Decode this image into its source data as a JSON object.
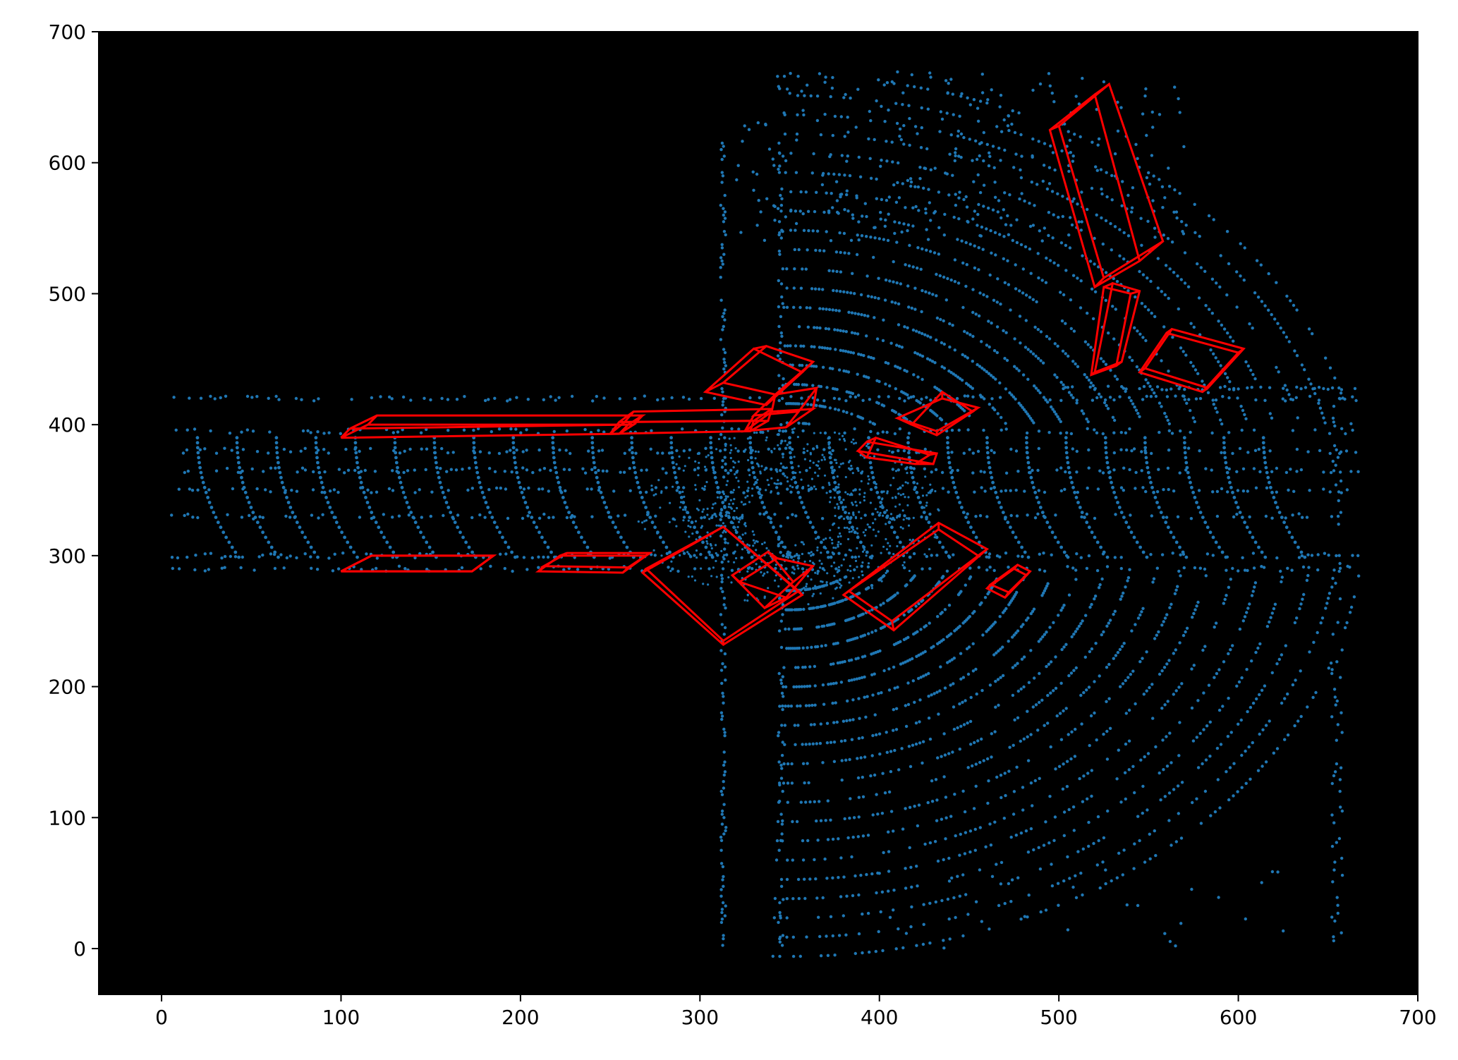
{
  "chart_data": {
    "type": "scatter",
    "title": "",
    "xlabel": "",
    "ylabel": "",
    "xlim": [
      -35,
      700
    ],
    "ylim": [
      -35,
      700
    ],
    "grid": false,
    "legend": "none",
    "plot_background": "#000000",
    "point_color": "#1f77b4",
    "box_color": "#ff0000",
    "x_ticks": [
      0,
      100,
      200,
      300,
      400,
      500,
      600,
      700
    ],
    "y_ticks": [
      0,
      100,
      200,
      300,
      400,
      500,
      600,
      700
    ],
    "x_tick_labels": [
      "0",
      "100",
      "200",
      "300",
      "400",
      "500",
      "600",
      "700"
    ],
    "y_tick_labels": [
      "0",
      "100",
      "200",
      "300",
      "400",
      "500",
      "600",
      "700"
    ],
    "point_cloud": {
      "description_of_structures": "lidar bird's-eye-view point cloud centered near (350, 330)",
      "center": [
        350,
        330
      ],
      "road_band_y": [
        280,
        400
      ],
      "road_band_x": [
        5,
        665
      ],
      "vertical_road_x": [
        315,
        345
      ],
      "vertical_road_y": [
        0,
        620
      ]
    },
    "boxes": [
      {
        "name": "box-1",
        "bottom": [
          [
            100,
            390
          ],
          [
            255,
            393
          ],
          [
            263,
            400
          ],
          [
            115,
            400
          ]
        ],
        "top": [
          [
            105,
            397
          ],
          [
            260,
            400
          ],
          [
            268,
            407
          ],
          [
            120,
            407
          ]
        ]
      },
      {
        "name": "box-2",
        "bottom": [
          [
            250,
            393
          ],
          [
            328,
            395
          ],
          [
            330,
            403
          ],
          [
            255,
            402
          ]
        ],
        "top": [
          [
            258,
            402
          ],
          [
            338,
            403
          ],
          [
            340,
            412
          ],
          [
            263,
            410
          ]
        ]
      },
      {
        "name": "box-3",
        "bottom": [
          [
            100,
            288
          ],
          [
            173,
            288
          ],
          [
            185,
            300
          ],
          [
            117,
            300
          ]
        ],
        "top": [
          [
            100,
            288
          ],
          [
            173,
            288
          ],
          [
            185,
            300
          ],
          [
            117,
            300
          ]
        ]
      },
      {
        "name": "box-4",
        "bottom": [
          [
            210,
            288
          ],
          [
            257,
            287
          ],
          [
            270,
            300
          ],
          [
            222,
            300
          ]
        ],
        "top": [
          [
            213,
            292
          ],
          [
            260,
            291
          ],
          [
            272,
            302
          ],
          [
            226,
            302
          ]
        ]
      },
      {
        "name": "box-5",
        "bottom": [
          [
            268,
            287
          ],
          [
            313,
            232
          ],
          [
            357,
            270
          ],
          [
            313,
            322
          ]
        ],
        "top": [
          [
            270,
            290
          ],
          [
            313,
            235
          ],
          [
            355,
            273
          ],
          [
            313,
            322
          ]
        ]
      },
      {
        "name": "box-6",
        "bottom": [
          [
            322,
            280
          ],
          [
            343,
            298
          ],
          [
            363,
            292
          ],
          [
            348,
            268
          ]
        ],
        "top": [
          [
            318,
            285
          ],
          [
            338,
            303
          ],
          [
            352,
            280
          ],
          [
            336,
            260
          ]
        ]
      },
      {
        "name": "box-7",
        "bottom": [
          [
            303,
            425
          ],
          [
            330,
            458
          ],
          [
            357,
            440
          ],
          [
            337,
            415
          ]
        ],
        "top": [
          [
            313,
            432
          ],
          [
            337,
            460
          ],
          [
            363,
            448
          ],
          [
            342,
            423
          ]
        ]
      },
      {
        "name": "box-8",
        "bottom": [
          [
            325,
            395
          ],
          [
            348,
            398
          ],
          [
            363,
            412
          ],
          [
            340,
            410
          ]
        ],
        "top": [
          [
            330,
            407
          ],
          [
            355,
            410
          ],
          [
            365,
            428
          ],
          [
            342,
            423
          ]
        ]
      },
      {
        "name": "box-9",
        "bottom": [
          [
            380,
            270
          ],
          [
            433,
            325
          ],
          [
            460,
            305
          ],
          [
            408,
            243
          ]
        ],
        "top": [
          [
            383,
            273
          ],
          [
            433,
            320
          ],
          [
            455,
            300
          ],
          [
            407,
            250
          ]
        ]
      },
      {
        "name": "box-10",
        "bottom": [
          [
            388,
            380
          ],
          [
            430,
            370
          ],
          [
            432,
            378
          ],
          [
            393,
            387
          ]
        ],
        "top": [
          [
            393,
            375
          ],
          [
            420,
            370
          ],
          [
            428,
            377
          ],
          [
            398,
            390
          ]
        ]
      },
      {
        "name": "box-11",
        "bottom": [
          [
            410,
            405
          ],
          [
            435,
            420
          ],
          [
            455,
            413
          ],
          [
            432,
            395
          ]
        ],
        "top": [
          [
            418,
            400
          ],
          [
            435,
            425
          ],
          [
            452,
            410
          ],
          [
            432,
            392
          ]
        ]
      },
      {
        "name": "box-12",
        "bottom": [
          [
            460,
            275
          ],
          [
            470,
            268
          ],
          [
            482,
            285
          ],
          [
            475,
            290
          ]
        ],
        "top": [
          [
            462,
            278
          ],
          [
            472,
            272
          ],
          [
            484,
            288
          ],
          [
            477,
            293
          ]
        ]
      },
      {
        "name": "box-13",
        "bottom": [
          [
            495,
            625
          ],
          [
            520,
            505
          ],
          [
            545,
            525
          ],
          [
            520,
            652
          ]
        ],
        "top": [
          [
            500,
            628
          ],
          [
            525,
            512
          ],
          [
            558,
            540
          ],
          [
            528,
            660
          ]
        ]
      },
      {
        "name": "box-14",
        "bottom": [
          [
            518,
            438
          ],
          [
            532,
            445
          ],
          [
            540,
            500
          ],
          [
            525,
            505
          ]
        ],
        "top": [
          [
            520,
            440
          ],
          [
            535,
            448
          ],
          [
            545,
            502
          ],
          [
            530,
            508
          ]
        ]
      },
      {
        "name": "box-15",
        "bottom": [
          [
            545,
            440
          ],
          [
            580,
            425
          ],
          [
            600,
            455
          ],
          [
            560,
            470
          ]
        ],
        "top": [
          [
            548,
            443
          ],
          [
            583,
            428
          ],
          [
            603,
            458
          ],
          [
            563,
            473
          ]
        ]
      }
    ]
  }
}
